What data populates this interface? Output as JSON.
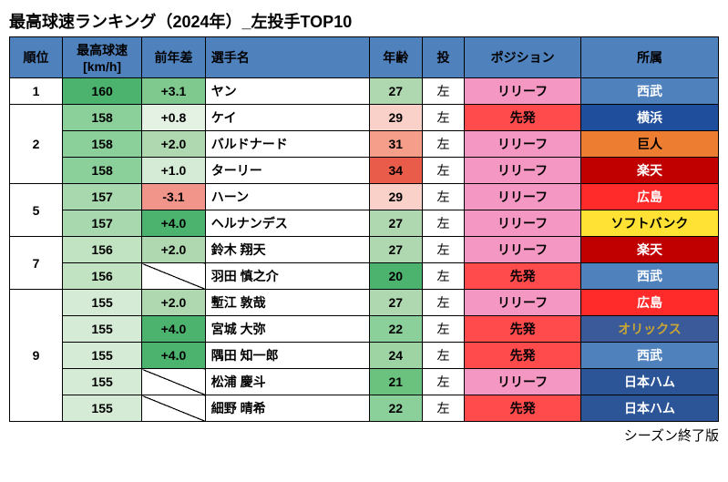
{
  "title": "最高球速ランキング（2024年）_左投手TOP10",
  "footer": "シーズン終了版",
  "columns": [
    "順位",
    "最高球速\n[km/h]",
    "前年差",
    "選手名",
    "年齢",
    "投",
    "ポジション",
    "所属"
  ],
  "header_colors": {
    "bg": "#4f81bd",
    "fg": "#000000"
  },
  "position_colors": {
    "リリーフ": "#f497c3",
    "先発": "#ff4b4b"
  },
  "team_colors": {
    "西武": {
      "bg": "#4f81bd",
      "fg": "#ffffff"
    },
    "横浜": {
      "bg": "#1f4e9c",
      "fg": "#ffffff"
    },
    "巨人": {
      "bg": "#ed7d31",
      "fg": "#000000"
    },
    "楽天": {
      "bg": "#c00000",
      "fg": "#ffffff"
    },
    "広島": {
      "bg": "#ff2a2a",
      "fg": "#ffffff"
    },
    "ソフトバンク": {
      "bg": "#ffe233",
      "fg": "#000000"
    },
    "オリックス": {
      "bg": "#3a5a9a",
      "fg": "#c9a633"
    },
    "日本ハム": {
      "bg": "#2b5597",
      "fg": "#ffffff"
    }
  },
  "rank_groups": [
    1,
    3,
    2,
    2,
    5
  ],
  "rank_labels": [
    "1",
    "2",
    "5",
    "7",
    "9"
  ],
  "rows": [
    {
      "speed": 160,
      "speed_bg": "#4bb36d",
      "diff": "+3.1",
      "diff_bg": "#7fc98f",
      "name": "ヤン",
      "age": 27,
      "age_bg": "#afd8b0",
      "throw": "左",
      "pos": "リリーフ",
      "team": "西武"
    },
    {
      "speed": 158,
      "speed_bg": "#8bcf9a",
      "diff": "+0.8",
      "diff_bg": "#e4f2e4",
      "name": "ケイ",
      "age": 29,
      "age_bg": "#fad1c8",
      "throw": "左",
      "pos": "先発",
      "team": "横浜"
    },
    {
      "speed": 158,
      "speed_bg": "#8bcf9a",
      "diff": "+2.0",
      "diff_bg": "#afd8b0",
      "name": "バルドナード",
      "age": 31,
      "age_bg": "#f59e8a",
      "throw": "左",
      "pos": "リリーフ",
      "team": "巨人"
    },
    {
      "speed": 158,
      "speed_bg": "#8bcf9a",
      "diff": "+1.0",
      "diff_bg": "#d6ebd6",
      "name": "ターリー",
      "age": 34,
      "age_bg": "#ea5c4a",
      "throw": "左",
      "pos": "リリーフ",
      "team": "楽天"
    },
    {
      "speed": 157,
      "speed_bg": "#a7d8ae",
      "diff": "-3.1",
      "diff_bg": "#f1948a",
      "name": "ハーン",
      "age": 29,
      "age_bg": "#fad1c8",
      "throw": "左",
      "pos": "リリーフ",
      "team": "広島"
    },
    {
      "speed": 157,
      "speed_bg": "#a7d8ae",
      "diff": "+4.0",
      "diff_bg": "#4bb36d",
      "name": "ヘルナンデス",
      "age": 27,
      "age_bg": "#afd8b0",
      "throw": "左",
      "pos": "リリーフ",
      "team": "ソフトバンク"
    },
    {
      "speed": 156,
      "speed_bg": "#c2e3c2",
      "diff": "+2.0",
      "diff_bg": "#afd8b0",
      "name": "鈴木 翔天",
      "age": 27,
      "age_bg": "#afd8b0",
      "throw": "左",
      "pos": "リリーフ",
      "team": "楽天"
    },
    {
      "speed": 156,
      "speed_bg": "#c2e3c2",
      "diff": null,
      "diff_bg": null,
      "name": "羽田 慎之介",
      "age": 20,
      "age_bg": "#4bb36d",
      "throw": "左",
      "pos": "先発",
      "team": "西武"
    },
    {
      "speed": 155,
      "speed_bg": "#d6ebd6",
      "diff": "+2.0",
      "diff_bg": "#afd8b0",
      "name": "塹江 敦哉",
      "age": 27,
      "age_bg": "#afd8b0",
      "throw": "左",
      "pos": "リリーフ",
      "team": "広島"
    },
    {
      "speed": 155,
      "speed_bg": "#d6ebd6",
      "diff": "+4.0",
      "diff_bg": "#4bb36d",
      "name": "宮城 大弥",
      "age": 22,
      "age_bg": "#8bcf9a",
      "throw": "左",
      "pos": "先発",
      "team": "オリックス"
    },
    {
      "speed": 155,
      "speed_bg": "#d6ebd6",
      "diff": "+4.0",
      "diff_bg": "#4bb36d",
      "name": "隅田 知一郎",
      "age": 24,
      "age_bg": "#9ed3a4",
      "throw": "左",
      "pos": "先発",
      "team": "西武"
    },
    {
      "speed": 155,
      "speed_bg": "#d6ebd6",
      "diff": null,
      "diff_bg": null,
      "name": "松浦 慶斗",
      "age": 21,
      "age_bg": "#6bc27f",
      "throw": "左",
      "pos": "リリーフ",
      "team": "日本ハム"
    },
    {
      "speed": 155,
      "speed_bg": "#d6ebd6",
      "diff": null,
      "diff_bg": null,
      "name": "細野 晴希",
      "age": 22,
      "age_bg": "#8bcf9a",
      "throw": "左",
      "pos": "先発",
      "team": "日本ハム"
    }
  ]
}
